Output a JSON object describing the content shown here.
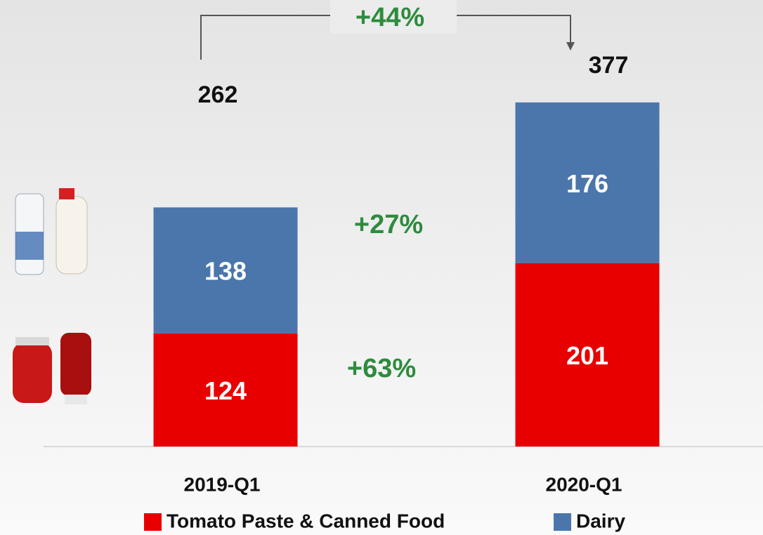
{
  "chart_data": {
    "type": "stacked_bar",
    "categories": [
      "2019-Q1",
      "2020-Q1"
    ],
    "series": [
      {
        "name": "Tomato Paste & Canned Food",
        "color": "#e80000",
        "values": [
          124,
          201
        ]
      },
      {
        "name": "Dairy",
        "color": "#4a76ac",
        "values": [
          138,
          176
        ]
      }
    ],
    "totals": [
      262,
      377
    ],
    "ylim": [
      0,
      400
    ],
    "annotations": [
      "+44%",
      "+27%",
      "+63%"
    ]
  }
}
